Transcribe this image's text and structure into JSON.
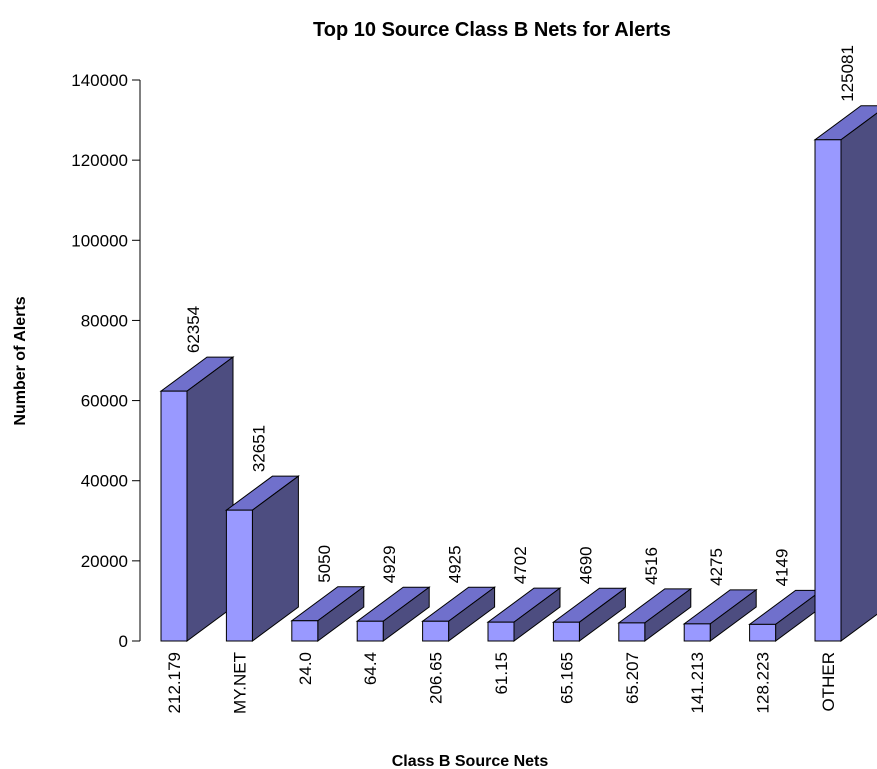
{
  "chart_data": {
    "type": "bar3d",
    "title": "Top 10 Source Class B Nets for Alerts",
    "x_label": "Class B Source Nets",
    "y_label": "Number of Alerts",
    "categories": [
      "212.179",
      "MY.NET",
      "24.0",
      "64.4",
      "206.65",
      "61.15",
      "65.165",
      "65.207",
      "141.213",
      "128.223",
      "OTHER"
    ],
    "values": [
      62354,
      32651,
      5050,
      4929,
      4925,
      4702,
      4690,
      4516,
      4275,
      4149,
      125081
    ],
    "color": "#9999ff",
    "ylim": [
      0,
      140000
    ],
    "yticks": [
      0,
      20000,
      40000,
      60000,
      80000,
      100000,
      120000,
      140000
    ]
  }
}
